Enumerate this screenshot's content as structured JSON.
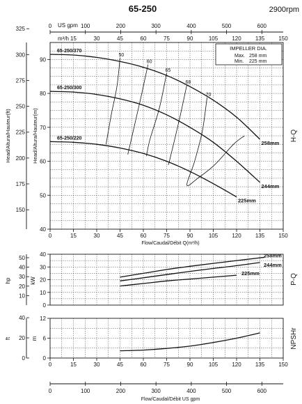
{
  "header": {
    "model": "65-250",
    "speed": "2900rpm"
  },
  "legend": {
    "title": "IMPELLER DIA.",
    "max_label": "Max.",
    "max_value": "258 mm",
    "min_label": "Min.",
    "min_value": "225 mm"
  },
  "axes": {
    "usgpm_unit": "US gpm",
    "m3h_unit": "m³/h",
    "flow_label": "Flow/Caudal/Débit Q(m³/h)",
    "flow_label_bottom": "Flow/Caudal/Débit  US gpm",
    "head_ft_label": "Head/Altura/Hauteur(ft)",
    "head_m_label": "Head/Altura/Hauteur(m)",
    "hp_label": "hp",
    "kw_label": "kW",
    "ft_label": "ft",
    "m_label": "m",
    "hq_title": "H-Q",
    "pq_title": "P-Q",
    "npsh_title": "NPSHr"
  },
  "chart_data": [
    {
      "type": "line",
      "title": "H-Q",
      "xlabel": "Flow/Caudal/Débit Q(m³/h)",
      "ylabel": "Head/Altura/Hauteur(m)",
      "xlim": [
        0,
        150
      ],
      "ylim": [
        40,
        95
      ],
      "x_ticks": [
        "0",
        "15",
        "30",
        "45",
        "60",
        "75",
        "90",
        "105",
        "120",
        "135",
        "150"
      ],
      "y_ticks": [
        "40",
        "50",
        "60",
        "70",
        "80",
        "90"
      ],
      "ft_ticks": [
        "150",
        "175",
        "200",
        "225",
        "250",
        "275",
        "300",
        "325"
      ],
      "top_usgpm_ticks": [
        "0",
        "100",
        "200",
        "300",
        "400",
        "500",
        "600"
      ],
      "top_m3h_ticks": [
        "0",
        "15",
        "30",
        "45",
        "60",
        "75",
        "90",
        "105",
        "120",
        "135",
        "150"
      ],
      "series": [
        {
          "name": "258mm",
          "label": "65-250/370",
          "x": [
            0,
            15,
            30,
            45,
            60,
            75,
            90,
            105,
            120,
            135
          ],
          "y": [
            91.5,
            91.3,
            90.6,
            89.4,
            87.7,
            85.3,
            82.0,
            78.0,
            73.0,
            66.5
          ]
        },
        {
          "name": "244mm",
          "label": "65-250/300",
          "x": [
            0,
            15,
            30,
            45,
            60,
            75,
            90,
            105,
            120,
            135
          ],
          "y": [
            80.6,
            80.4,
            79.7,
            78.4,
            76.5,
            73.7,
            70.0,
            65.6,
            60.0,
            53.8
          ]
        },
        {
          "name": "225mm",
          "label": "65-250/220",
          "x": [
            0,
            15,
            30,
            45,
            60,
            75,
            90,
            105,
            120
          ],
          "y": [
            65.8,
            65.6,
            65.0,
            63.9,
            62.3,
            60.0,
            57.0,
            53.4,
            49.5
          ]
        }
      ],
      "efficiency_lines": [
        {
          "label": "50",
          "x": [
            45,
            43,
            39.5,
            36
          ],
          "y": [
            90.5,
            82,
            74,
            65
          ]
        },
        {
          "label": "60",
          "x": [
            63,
            58.5,
            53,
            50
          ],
          "y": [
            88.5,
            79,
            68,
            62
          ]
        },
        {
          "label": "65",
          "x": [
            75,
            70.5,
            64,
            62
          ],
          "y": [
            86,
            76,
            66,
            61.5
          ]
        },
        {
          "label": "68",
          "x": [
            88,
            83,
            77,
            76
          ],
          "y": [
            82.5,
            72,
            60.5,
            59
          ]
        },
        {
          "label": "70",
          "x": [
            101,
            98,
            93,
            88,
            95,
            106,
            118,
            125
          ],
          "y": [
            78.8,
            69,
            60,
            53,
            55,
            59,
            65,
            67.5
          ]
        }
      ]
    },
    {
      "type": "line",
      "title": "P-Q",
      "ylabel": "kW",
      "xlim": [
        0,
        150
      ],
      "ylim": [
        0,
        40
      ],
      "y_ticks": [
        "0",
        "10",
        "20",
        "30",
        "40"
      ],
      "hp_ticks": [
        "10",
        "20",
        "30",
        "40",
        "50"
      ],
      "series": [
        {
          "name": "258mm",
          "x": [
            45,
            60,
            75,
            90,
            105,
            120,
            135,
            138
          ],
          "y": [
            22,
            25,
            28,
            30.5,
            32.8,
            35,
            37.2,
            37.6
          ]
        },
        {
          "name": "244mm",
          "x": [
            45,
            60,
            75,
            90,
            105,
            120,
            135
          ],
          "y": [
            19,
            21.5,
            24,
            26.5,
            28.8,
            31,
            33.5
          ]
        },
        {
          "name": "225mm",
          "x": [
            45,
            60,
            75,
            90,
            105,
            120
          ],
          "y": [
            15,
            17,
            19,
            20.5,
            22,
            23.5
          ]
        }
      ]
    },
    {
      "type": "line",
      "title": "NPSHr",
      "ylabel": "m",
      "xlim": [
        0,
        150
      ],
      "ylim": [
        0,
        12
      ],
      "y_ticks": [
        "0",
        "6",
        "12"
      ],
      "ft_ticks": [
        "0",
        "20",
        "40"
      ],
      "bottom_usgpm_ticks": [
        "0",
        "100",
        "200",
        "300",
        "400",
        "500",
        "600"
      ],
      "series": [
        {
          "name": "NPSHr",
          "x": [
            45,
            60,
            75,
            90,
            105,
            120,
            135
          ],
          "y": [
            2.2,
            2.4,
            2.9,
            3.6,
            4.7,
            6.0,
            7.6
          ]
        }
      ]
    }
  ]
}
